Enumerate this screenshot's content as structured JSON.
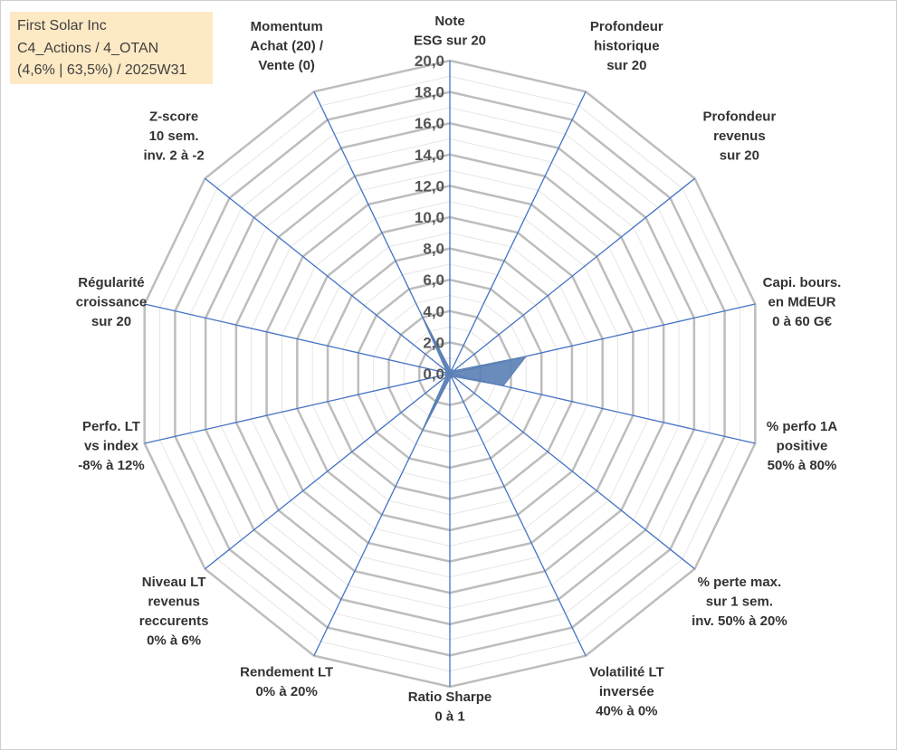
{
  "info_box": {
    "line1": "First Solar Inc",
    "line2": "C4_Actions / 4_OTAN",
    "line3": "(4,6% | 63,5%) / 2025W31"
  },
  "colors": {
    "grid": "#bdbdbd",
    "minor_grid": "#e6e6e6",
    "spoke": "#4472c4",
    "fill": "#5a7fb5",
    "info_bg": "#fde9c4"
  },
  "chart_data": {
    "type": "radar",
    "title": "",
    "rmin": 0,
    "rmax": 20,
    "major_step": 2,
    "minor_step": 1,
    "tick_labels": [
      "0,0",
      "2,0",
      "4,0",
      "6,0",
      "8,0",
      "10,0",
      "12,0",
      "14,0",
      "16,0",
      "18,0",
      "20,0"
    ],
    "axes": [
      {
        "lines": [
          "Note",
          "ESG sur 20"
        ],
        "value": 0.3
      },
      {
        "lines": [
          "Profondeur",
          "historique",
          "sur 20"
        ],
        "value": 0.3
      },
      {
        "lines": [
          "Profondeur",
          "revenus",
          "sur 20"
        ],
        "value": 0.3
      },
      {
        "lines": [
          "Capi. bours.",
          "en MdEUR",
          "0 à 60 G€"
        ],
        "value": 5.0
      },
      {
        "lines": [
          "% perfo 1A",
          "positive",
          "50% à 80%"
        ],
        "value": 3.5
      },
      {
        "lines": [
          "% perte max.",
          "sur 1 sem.",
          "inv. 50% à 20%"
        ],
        "value": 0.3
      },
      {
        "lines": [
          "Volatilité LT",
          "inversée",
          "40% à 0%"
        ],
        "value": 0.3
      },
      {
        "lines": [
          "Ratio Sharpe",
          "0 à 1"
        ],
        "value": 0.3
      },
      {
        "lines": [
          "Rendement LT",
          "0% à 20%"
        ],
        "value": 4.5
      },
      {
        "lines": [
          "Niveau LT",
          "revenus",
          "reccurents",
          "0% à 6%"
        ],
        "value": 0.3
      },
      {
        "lines": [
          "Perfo. LT",
          "vs index",
          "-8% à 12%"
        ],
        "value": 0.3
      },
      {
        "lines": [
          "Régularité",
          "croissance",
          "sur 20"
        ],
        "value": 0.3
      },
      {
        "lines": [
          "Z-score",
          "10 sem.",
          "inv. 2 à -2"
        ],
        "value": 0.3
      },
      {
        "lines": [
          "Momentum",
          "Achat (20) /",
          "Vente (0)"
        ],
        "value": 4.5
      }
    ]
  }
}
